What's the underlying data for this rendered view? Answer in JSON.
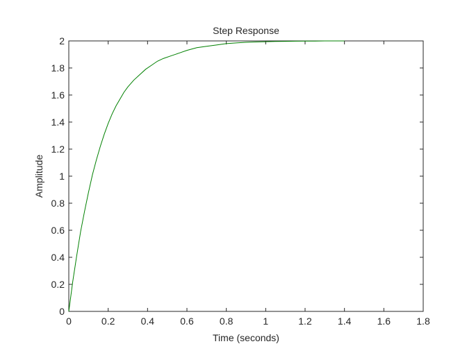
{
  "chart_data": {
    "type": "line",
    "title": "Step Response",
    "xlabel": "Time (seconds)",
    "ylabel": "Amplitude",
    "xlim": [
      0,
      1.8
    ],
    "ylim": [
      0,
      2
    ],
    "grid": false,
    "xticks": [
      0,
      0.2,
      0.4,
      0.6,
      0.8,
      1,
      1.2,
      1.4,
      1.6,
      1.8
    ],
    "xtick_labels": [
      "0",
      "0.2",
      "0.4",
      "0.6",
      "0.8",
      "1",
      "1.2",
      "1.4",
      "1.6",
      "1.8"
    ],
    "yticks": [
      0,
      0.2,
      0.4,
      0.6,
      0.8,
      1,
      1.2,
      1.4,
      1.6,
      1.8,
      2
    ],
    "ytick_labels": [
      "0",
      "0.2",
      "0.4",
      "0.6",
      "0.8",
      "1",
      "1.2",
      "1.4",
      "1.6",
      "1.8",
      "2"
    ],
    "series": [
      {
        "color": "#008000",
        "x": [
          0,
          0.02,
          0.04,
          0.06,
          0.08,
          0.1,
          0.12,
          0.14,
          0.16,
          0.18,
          0.2,
          0.22,
          0.24,
          0.26,
          0.28,
          0.3,
          0.33,
          0.36,
          0.39,
          0.42,
          0.45,
          0.48,
          0.52,
          0.56,
          0.6,
          0.65,
          0.7,
          0.75,
          0.8,
          0.85,
          0.9,
          0.95,
          1.0,
          1.05,
          1.1,
          1.15,
          1.2,
          1.25,
          1.3,
          1.35,
          1.4
        ],
        "y": [
          0,
          0.22,
          0.41,
          0.59,
          0.74,
          0.88,
          1.01,
          1.12,
          1.22,
          1.31,
          1.39,
          1.46,
          1.52,
          1.57,
          1.62,
          1.66,
          1.71,
          1.75,
          1.79,
          1.82,
          1.85,
          1.87,
          1.89,
          1.91,
          1.93,
          1.95,
          1.96,
          1.97,
          1.98,
          1.985,
          1.99,
          1.992,
          1.994,
          1.996,
          1.997,
          1.998,
          1.999,
          1.999,
          2.0,
          2.0,
          2.0
        ]
      }
    ]
  }
}
